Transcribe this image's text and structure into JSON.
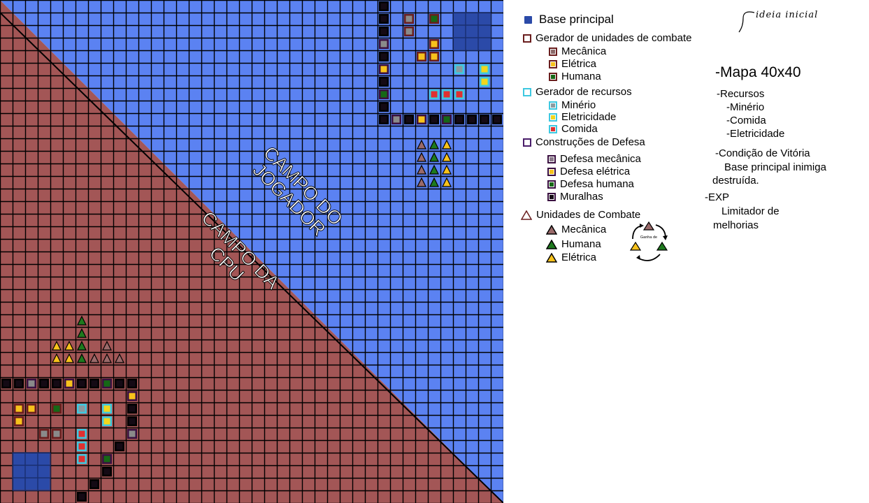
{
  "map": {
    "grid": 40,
    "colors": {
      "player": "#5b82f2",
      "cpu": "#a35656",
      "line": "#000000",
      "base": "#2b4aa8",
      "wall": "#140a14",
      "mech": "#8a8a8a",
      "elec": "#f7c21c",
      "human": "#166816",
      "res_border": "#3ec8e0",
      "res_food": "#e03030",
      "res_elec": "#f2d61c",
      "res_mineral": "#8a9aa0",
      "gen_border": "#6a1e1e",
      "tri_mech": "#9a6a6a",
      "tri_human": "#1e7a1e",
      "tri_elec": "#f7c21c"
    },
    "field_labels": {
      "player": [
        "CAMPO DO",
        "JOGADOR"
      ],
      "cpu": [
        "CAMPO DA",
        "CPU"
      ]
    }
  },
  "legend": {
    "base": "Base principal",
    "generator": "Gerador de unidades de combate",
    "generator_items": [
      "Mecânica",
      "Elétrica",
      "Humana"
    ],
    "resources": "Gerador de recursos",
    "resource_items": [
      "Minério",
      "Eletricidade",
      "Comida"
    ],
    "defense": "Construções de Defesa",
    "defense_items": [
      "Defesa mecânica",
      "Defesa elétrica",
      "Defesa humana",
      "Muralhas"
    ],
    "units": "Unidades de Combate",
    "unit_items": [
      "Mecânica",
      "Humana",
      "Elétrica"
    ],
    "cycle_label": "Ganha de"
  },
  "notes": {
    "handwritten": "ideia inicial",
    "title": "-Mapa 40x40",
    "lines": [
      "-Recursos",
      "-Minério",
      "-Comida",
      "-Eletricidade",
      "-Condição de Vitória",
      "Base principal inimiga",
      "destruída.",
      "-EXP",
      "Limitador de",
      "melhorias"
    ]
  }
}
